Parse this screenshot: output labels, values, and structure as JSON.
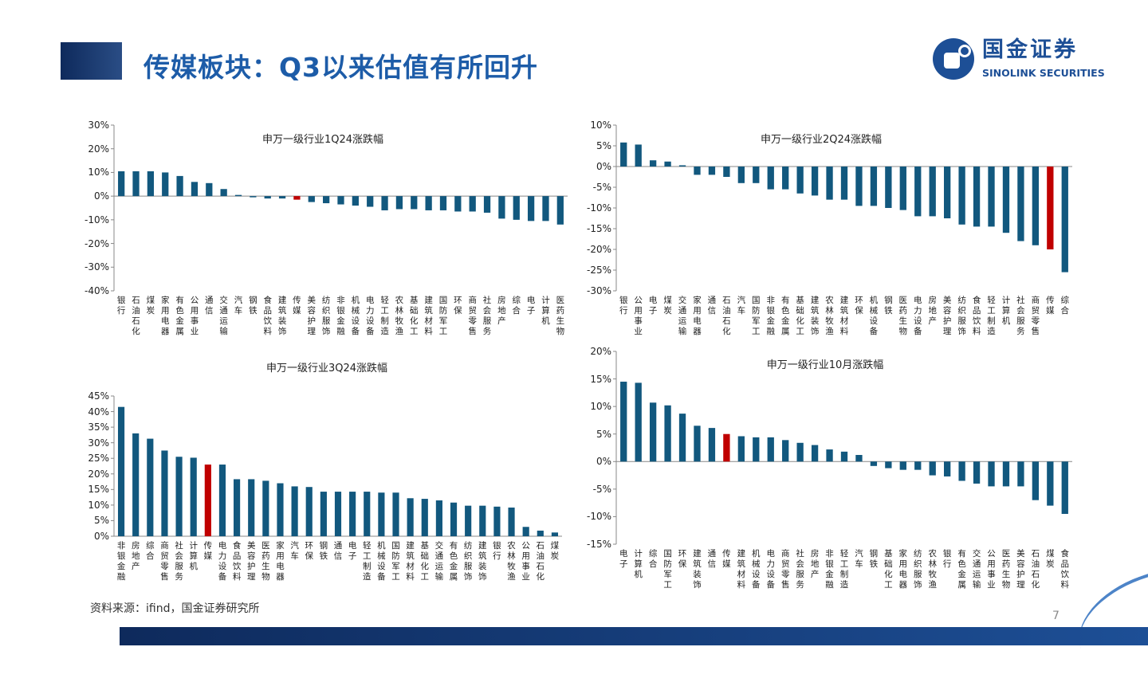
{
  "header": {
    "title": "传媒板块：Q3以来估值有所回升",
    "logo_cn": "国金证券",
    "logo_en": "SINOLINK SECURITIES"
  },
  "footer": {
    "source": "资料来源：ifind，国金证券研究所",
    "page": "7"
  },
  "colors": {
    "bar": "#12587e",
    "highlight": "#c00000",
    "title": "#1d5ca8"
  },
  "chart_data": [
    {
      "type": "bar",
      "title": "申万一级行业1Q24涨跌幅",
      "highlight": "传媒",
      "ylim": [
        -40,
        30
      ],
      "yticks": [
        30,
        20,
        10,
        0,
        -10,
        -20,
        -30,
        -40
      ],
      "unit": "%",
      "categories": [
        "银行",
        "石油石化",
        "煤炭",
        "家用电器",
        "有色金属",
        "公用事业",
        "通信",
        "交通运输",
        "汽车",
        "钢铁",
        "食品饮料",
        "建筑装饰",
        "传媒",
        "美容护理",
        "纺织服饰",
        "非银金融",
        "机械设备",
        "电力设备",
        "轻工制造",
        "农林牧渔",
        "基础化工",
        "建筑材料",
        "国防军工",
        "环保",
        "商贸零售",
        "社会服务",
        "房地产",
        "综合",
        "电子",
        "计算机",
        "医药生物"
      ],
      "values": [
        10.5,
        10.5,
        10.5,
        10,
        8.5,
        6,
        5.5,
        3,
        0.5,
        -0.5,
        -1,
        -1,
        -1.5,
        -2.5,
        -3,
        -3.5,
        -4,
        -4.5,
        -6,
        -5.5,
        -5.5,
        -6,
        -6,
        -6.5,
        -6.5,
        -7,
        -9.5,
        -10,
        -10.5,
        -10.5,
        -12
      ]
    },
    {
      "type": "bar",
      "title": "申万一级行业2Q24涨跌幅",
      "highlight": "传媒",
      "ylim": [
        -30,
        10
      ],
      "yticks": [
        10,
        5,
        0,
        -5,
        -10,
        -15,
        -20,
        -25,
        -30
      ],
      "unit": "%",
      "categories": [
        "银行",
        "公用事业",
        "电子",
        "煤炭",
        "交通运输",
        "家用电器",
        "通信",
        "石油石化",
        "汽车",
        "国防军工",
        "非银金融",
        "有色金属",
        "基础化工",
        "建筑装饰",
        "农林牧渔",
        "建筑材料",
        "环保",
        "机械设备",
        "钢铁",
        "医药生物",
        "电力设备",
        "房地产",
        "美容护理",
        "纺织服饰",
        "食品饮料",
        "轻工制造",
        "计算机",
        "社会服务",
        "商贸零售",
        "传媒",
        "综合"
      ],
      "values": [
        5.8,
        5.3,
        1.5,
        1.2,
        0.3,
        -2,
        -2,
        -2.5,
        -4,
        -4,
        -5.5,
        -5.5,
        -6.5,
        -7,
        -8,
        -8,
        -9.5,
        -9.5,
        -10,
        -10.5,
        -12,
        -12,
        -12.5,
        -14,
        -14.5,
        -14.5,
        -16,
        -18,
        -19,
        -20,
        -25.5
      ]
    },
    {
      "type": "bar",
      "title": "申万一级行业3Q24涨跌幅",
      "highlight": "传媒",
      "ylim": [
        0,
        45
      ],
      "yticks": [
        45,
        40,
        35,
        30,
        25,
        20,
        15,
        10,
        5,
        0
      ],
      "unit": "%",
      "categories": [
        "非银金融",
        "房地产",
        "综合",
        "商贸零售",
        "社会服务",
        "计算机",
        "传媒",
        "电力设备",
        "食品饮料",
        "美容护理",
        "医药生物",
        "家用电器",
        "汽车",
        "环保",
        "钢铁",
        "通信",
        "电子",
        "轻工制造",
        "机械设备",
        "国防军工",
        "建筑材料",
        "基础化工",
        "交通运输",
        "有色金属",
        "纺织服饰",
        "建筑装饰",
        "银行",
        "农林牧渔",
        "公用事业",
        "石油石化",
        "煤炭"
      ],
      "values": [
        41.5,
        33,
        31.3,
        27.5,
        25.5,
        25.2,
        23,
        23,
        18.3,
        18.3,
        17.8,
        17,
        16,
        15.8,
        14.3,
        14.3,
        14.3,
        14.3,
        14,
        14,
        12.2,
        12,
        11.5,
        10.8,
        9.8,
        9.8,
        9.5,
        9.2,
        3,
        1.8,
        1.2
      ]
    },
    {
      "type": "bar",
      "title": "申万一级行业10月涨跌幅",
      "highlight": "传媒",
      "ylim": [
        -15,
        20
      ],
      "yticks": [
        20,
        15,
        10,
        5,
        0,
        -5,
        -10,
        -15
      ],
      "unit": "%",
      "categories": [
        "电子",
        "计算机",
        "综合",
        "国防军工",
        "环保",
        "建筑装饰",
        "通信",
        "传媒",
        "建筑材料",
        "机械设备",
        "电力设备",
        "商贸零售",
        "社会服务",
        "房地产",
        "非银金融",
        "轻工制造",
        "汽车",
        "钢铁",
        "基础化工",
        "家用电器",
        "纺织服饰",
        "农林牧渔",
        "银行",
        "有色金属",
        "交通运输",
        "公用事业",
        "医药生物",
        "美容护理",
        "石油石化",
        "煤炭",
        "食品饮料"
      ],
      "values": [
        14.5,
        14.3,
        10.7,
        10.2,
        8.7,
        6.5,
        6.1,
        5,
        4.6,
        4.4,
        4.4,
        3.9,
        3.4,
        3,
        2.2,
        1.8,
        1.2,
        -0.8,
        -1.2,
        -1.5,
        -1.5,
        -2.5,
        -2.7,
        -3.5,
        -4,
        -4.5,
        -4.5,
        -4.5,
        -7,
        -8,
        -9.5
      ]
    }
  ]
}
